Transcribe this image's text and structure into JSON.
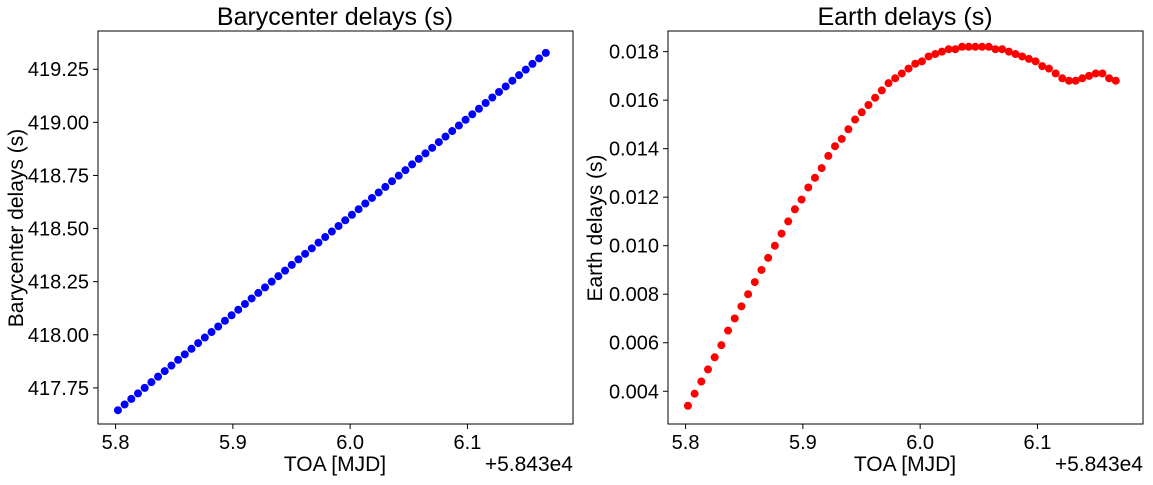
{
  "chart_data": [
    {
      "type": "scatter",
      "title": "Barycenter delays (s)",
      "xlabel": "TOA  [MJD]",
      "ylabel": "Barycenter delays (s)",
      "x_offset_label": "+5.843e4",
      "xlim": [
        5.785,
        6.19
      ],
      "ylim": [
        417.58,
        419.43
      ],
      "xticks": [
        5.8,
        5.9,
        6.0,
        6.1
      ],
      "xtick_labels": [
        "5.8",
        "5.9",
        "6.0",
        "6.1"
      ],
      "yticks": [
        417.75,
        418.0,
        418.25,
        418.5,
        418.75,
        419.0,
        419.25
      ],
      "ytick_labels": [
        "417.75",
        "418.00",
        "418.25",
        "418.50",
        "418.75",
        "419.00",
        "419.25"
      ],
      "color": "#0000ff",
      "series": [
        {
          "x": [
            5.802,
            5.8077,
            5.8134,
            5.8191,
            5.8248,
            5.8305,
            5.8362,
            5.8419,
            5.8476,
            5.8533,
            5.859,
            5.8647,
            5.8704,
            5.8761,
            5.8818,
            5.8875,
            5.8932,
            5.8989,
            5.9046,
            5.9103,
            5.916,
            5.9217,
            5.9274,
            5.9331,
            5.9388,
            5.9445,
            5.9502,
            5.9559,
            5.9616,
            5.9673,
            5.973,
            5.9787,
            5.9844,
            5.9901,
            5.9958,
            6.0015,
            6.0072,
            6.0129,
            6.0186,
            6.0243,
            6.03,
            6.0357,
            6.0414,
            6.0471,
            6.0528,
            6.0585,
            6.0642,
            6.0699,
            6.0756,
            6.0813,
            6.087,
            6.0927,
            6.0984,
            6.1041,
            6.1098,
            6.1155,
            6.1212,
            6.1269,
            6.1326,
            6.1383,
            6.144,
            6.1497,
            6.1554,
            6.1611,
            6.1668
          ],
          "y": [
            417.645,
            417.672,
            417.698,
            417.724,
            417.75,
            417.777,
            417.803,
            417.829,
            417.855,
            417.882,
            417.908,
            417.934,
            417.961,
            417.987,
            418.013,
            418.039,
            418.066,
            418.092,
            418.118,
            418.145,
            418.171,
            418.197,
            418.223,
            418.25,
            418.276,
            418.302,
            418.329,
            418.355,
            418.381,
            418.407,
            418.434,
            418.46,
            418.486,
            418.512,
            418.539,
            418.565,
            418.591,
            418.618,
            418.644,
            418.67,
            418.696,
            418.723,
            418.749,
            418.775,
            418.802,
            418.828,
            418.854,
            418.88,
            418.907,
            418.933,
            418.959,
            418.985,
            419.012,
            419.038,
            419.064,
            419.091,
            419.117,
            419.143,
            419.169,
            419.196,
            419.222,
            419.248,
            419.275,
            419.301,
            419.327
          ]
        }
      ]
    },
    {
      "type": "scatter",
      "title": "Earth delays (s)",
      "xlabel": "TOA  [MJD]",
      "ylabel": "Earth delays (s)",
      "x_offset_label": "+5.843e4",
      "xlim": [
        5.785,
        6.19
      ],
      "ylim": [
        0.00265,
        0.01885
      ],
      "xticks": [
        5.8,
        5.9,
        6.0,
        6.1
      ],
      "xtick_labels": [
        "5.8",
        "5.9",
        "6.0",
        "6.1"
      ],
      "yticks": [
        0.004,
        0.006,
        0.008,
        0.01,
        0.012,
        0.014,
        0.016,
        0.018
      ],
      "ytick_labels": [
        "0.004",
        "0.006",
        "0.008",
        "0.010",
        "0.012",
        "0.014",
        "0.016",
        "0.018"
      ],
      "color": "#ff0000",
      "series": [
        {
          "x": [
            5.802,
            5.8077,
            5.8134,
            5.8191,
            5.8248,
            5.8305,
            5.8362,
            5.8419,
            5.8476,
            5.8533,
            5.859,
            5.8647,
            5.8704,
            5.8761,
            5.8818,
            5.8875,
            5.8932,
            5.8989,
            5.9046,
            5.9103,
            5.916,
            5.9217,
            5.9274,
            5.9331,
            5.9388,
            5.9445,
            5.9502,
            5.9559,
            5.9616,
            5.9673,
            5.973,
            5.9787,
            5.9844,
            5.9901,
            5.9958,
            6.0015,
            6.0072,
            6.0129,
            6.0186,
            6.0243,
            6.03,
            6.0357,
            6.0414,
            6.0471,
            6.0528,
            6.0585,
            6.0642,
            6.0699,
            6.0756,
            6.0813,
            6.087,
            6.0927,
            6.0984,
            6.1041,
            6.1098,
            6.1155,
            6.1212,
            6.1269,
            6.1326,
            6.1383,
            6.144,
            6.1497,
            6.1554,
            6.1611,
            6.1668
          ],
          "y": [
            0.0034,
            0.0039,
            0.0044,
            0.0049,
            0.0054,
            0.0059,
            0.0065,
            0.007,
            0.0075,
            0.008,
            0.0085,
            0.009,
            0.0095,
            0.01,
            0.0105,
            0.011,
            0.0115,
            0.0119,
            0.0124,
            0.0128,
            0.0132,
            0.0137,
            0.0141,
            0.0144,
            0.0148,
            0.0152,
            0.0155,
            0.0158,
            0.0161,
            0.0164,
            0.0167,
            0.0169,
            0.0171,
            0.0173,
            0.0175,
            0.0176,
            0.0178,
            0.0179,
            0.018,
            0.0181,
            0.0181,
            0.0182,
            0.0182,
            0.0182,
            0.0182,
            0.0182,
            0.0181,
            0.0181,
            0.018,
            0.0179,
            0.0178,
            0.0177,
            0.0176,
            0.0174,
            0.0173,
            0.0171,
            0.0169,
            0.0168,
            0.0168,
            0.0169,
            0.017,
            0.0171,
            0.0171,
            0.0169,
            0.0168
          ]
        }
      ]
    }
  ]
}
